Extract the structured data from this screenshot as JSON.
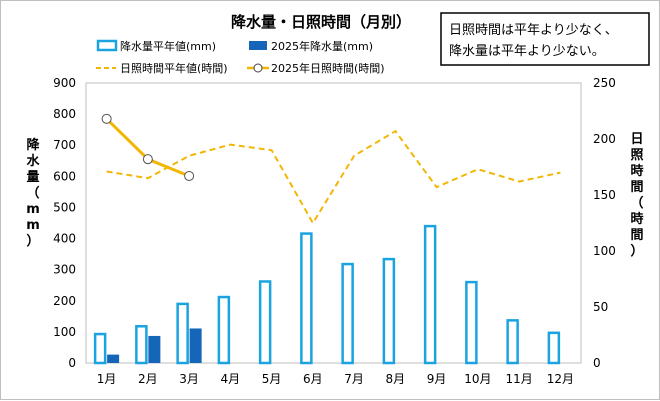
{
  "chart_data": {
    "type": "bar+line",
    "title": "降水量・日照時間（月別）",
    "annotation": [
      "日照時間は平年より少なく、",
      "降水量は平年より少ない。"
    ],
    "categories": [
      "1月",
      "2月",
      "3月",
      "4月",
      "5月",
      "6月",
      "7月",
      "8月",
      "9月",
      "10月",
      "11月",
      "12月"
    ],
    "y_left": {
      "label": "降水量（mm）",
      "ylim": [
        0,
        900
      ],
      "ticks": [
        0,
        100,
        200,
        300,
        400,
        500,
        600,
        700,
        800,
        900
      ]
    },
    "y_right": {
      "label": "日照時間（時間）",
      "ylim": [
        0,
        250
      ],
      "ticks": [
        0,
        50,
        100,
        150,
        200,
        250
      ]
    },
    "series": [
      {
        "name": "降水量平年値(mm)",
        "type": "bar",
        "axis": "left",
        "style": "outline",
        "color": "#1aa3e0",
        "values": [
          93,
          118,
          190,
          212,
          262,
          416,
          318,
          334,
          440,
          260,
          137,
          97
        ]
      },
      {
        "name": "2025年降水量(mm)",
        "type": "bar",
        "axis": "left",
        "style": "filled",
        "color": "#1565b8",
        "values": [
          27,
          87,
          111,
          null,
          null,
          null,
          null,
          null,
          null,
          null,
          null,
          null
        ]
      },
      {
        "name": "日照時間平年値(時間)",
        "type": "line",
        "axis": "right",
        "style": "dashed",
        "color": "#f2b705",
        "values": [
          171,
          165,
          185,
          195,
          190,
          125,
          185,
          207,
          157,
          173,
          162,
          170
        ]
      },
      {
        "name": "2025年日照時間(時間)",
        "type": "line",
        "axis": "right",
        "style": "solid-markers",
        "color": "#f2b705",
        "values": [
          218,
          182,
          167,
          null,
          null,
          null,
          null,
          null,
          null,
          null,
          null,
          null
        ]
      }
    ],
    "grid": false,
    "legend_position": "top-left"
  }
}
